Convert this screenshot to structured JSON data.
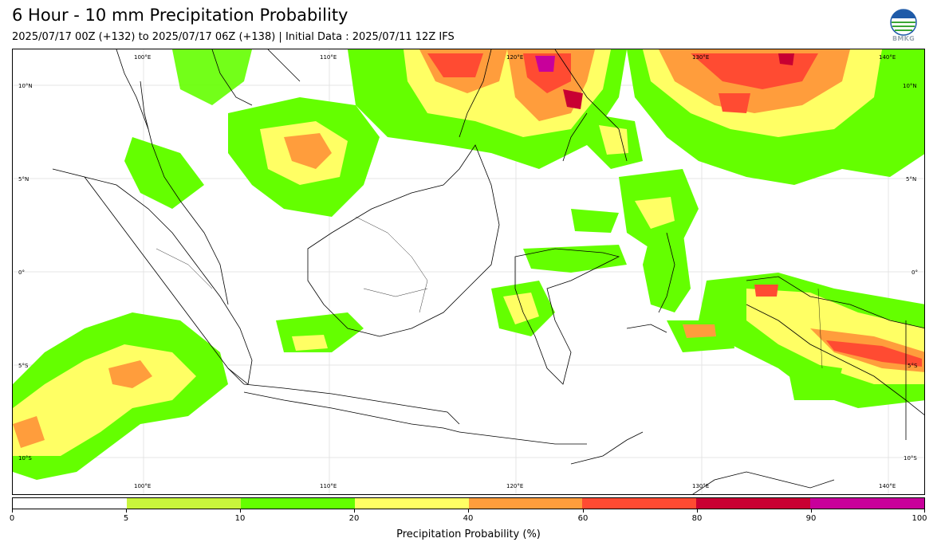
{
  "header": {
    "title": "6 Hour - 10 mm Precipitation Probability",
    "subtitle": "2025/07/17 00Z (+132) to 2025/07/17 06Z (+138) | Initial Data : 2025/07/11 12Z IFS",
    "logo_text": "BMKG"
  },
  "map": {
    "lon_labels_top": [
      "100°E",
      "110°E",
      "120°E",
      "130°E",
      "140°E"
    ],
    "lon_labels_bottom": [
      "100°E",
      "110°E",
      "120°E",
      "130°E",
      "140°E"
    ],
    "lat_labels_left": [
      "10°N",
      "5°N",
      "0°",
      "5°S",
      "10°S"
    ],
    "lat_labels_right": [
      "10°N",
      "5°N",
      "0°",
      "5°S",
      "10°S"
    ]
  },
  "colorbar": {
    "label": "Precipitation Probability (%)",
    "ticks": [
      "0",
      "5",
      "10",
      "20",
      "40",
      "60",
      "80",
      "90",
      "100"
    ],
    "colors": [
      "#ffffff",
      "#c8f53c",
      "#64ff00",
      "#ffff64",
      "#ff9d3c",
      "#ff4b32",
      "#c80032",
      "#c8009b"
    ]
  }
}
